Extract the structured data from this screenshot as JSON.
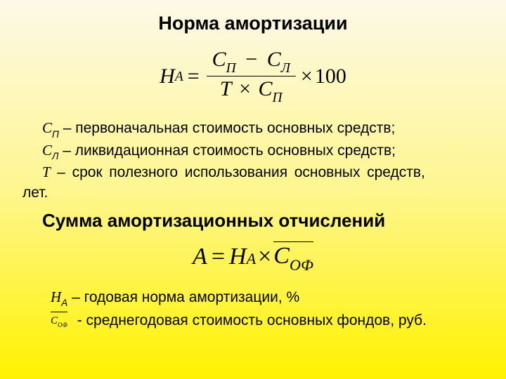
{
  "title": "Норма амортизации",
  "formula1": {
    "lhs_var": "Н",
    "lhs_sub": "А",
    "eq": "=",
    "num_a": "С",
    "num_a_sub": "П",
    "minus": "−",
    "num_b": "С",
    "num_b_sub": "Л",
    "den_a": "Т",
    "den_times": "×",
    "den_b": "С",
    "den_b_sub": "П",
    "times": "×",
    "hundred": "100"
  },
  "defs": {
    "sp_sym": "С",
    "sp_sub": "П",
    "sp_text": " – первоначальная стоимость основных средств;",
    "sl_sym": "С",
    "sl_sub": "Л",
    "sl_text": " – ликвидационная стоимость основных средств;",
    "t_sym": "Т",
    "t_text": " – срок полезного использования основных средств,",
    "t_tail": "лет."
  },
  "subtitle": "Сумма амортизационных отчислений",
  "formula2": {
    "lhs_var": "А",
    "eq": "=",
    "h_var": "Н",
    "h_sub": "А",
    "times": "×",
    "c_var": "С",
    "c_sub": "ОФ"
  },
  "defs2": {
    "ha_sym": "Н",
    "ha_sub": "А",
    "ha_text": " – годовая норма амортизации, %",
    "cof_var": "С",
    "cof_sub": "ОФ",
    "cof_text": " - среднегодовая стоимость основных фондов, руб."
  }
}
